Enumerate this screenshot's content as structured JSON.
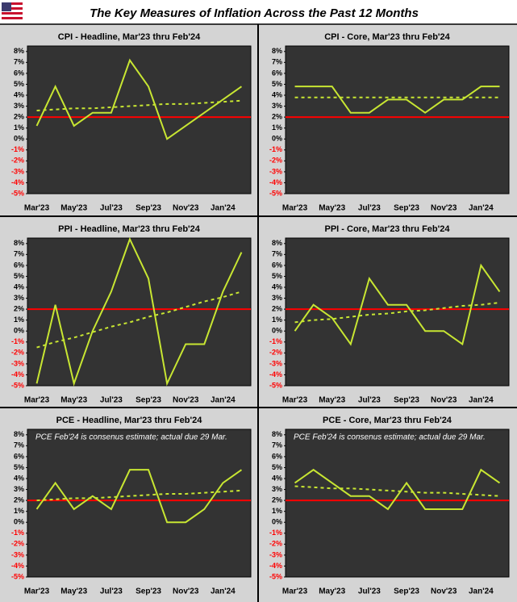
{
  "title": "The Key Measures of Inflation Across the Past 12 Months",
  "chart_data": [
    {
      "type": "line",
      "title": "CPI - Headline, Mar'23 thru Feb'24",
      "categories": [
        "Mar'23",
        null,
        "May'23",
        null,
        "Jul'23",
        null,
        "Sep'23",
        null,
        "Nov'23",
        null,
        "Jan'24",
        null
      ],
      "series": [
        {
          "color": "#c8e632",
          "values": [
            1.2,
            4.8,
            1.2,
            2.4,
            2.4,
            7.2,
            4.8,
            0,
            1.2,
            2.4,
            3.6,
            4.8
          ]
        },
        {
          "color": "#c8e632",
          "dashed": true,
          "values": [
            2.6,
            2.7,
            2.8,
            2.8,
            2.9,
            3.0,
            3.1,
            3.2,
            3.2,
            3.3,
            3.4,
            3.5
          ]
        }
      ],
      "reference_line": {
        "value": 2,
        "color": "#ff0000"
      },
      "ylim": [
        -5,
        8.5
      ],
      "yticks": [
        {
          "value": 8,
          "label": "8%"
        },
        {
          "value": 7,
          "label": "7%"
        },
        {
          "value": 6,
          "label": "6%"
        },
        {
          "value": 5,
          "label": "5%"
        },
        {
          "value": 4,
          "label": "4%"
        },
        {
          "value": 3,
          "label": "3%"
        },
        {
          "value": 2,
          "label": "2%"
        },
        {
          "value": 1,
          "label": "1%"
        },
        {
          "value": 0,
          "label": "0%"
        },
        {
          "value": -1,
          "label": "-1%"
        },
        {
          "value": -2,
          "label": "-2%"
        },
        {
          "value": -3,
          "label": "-3%"
        },
        {
          "value": -4,
          "label": "-4%"
        },
        {
          "value": -5,
          "label": "-5%"
        }
      ]
    },
    {
      "type": "line",
      "title": "CPI - Core, Mar'23 thru Feb'24",
      "categories": [
        "Mar'23",
        null,
        "May'23",
        null,
        "Jul'23",
        null,
        "Sep'23",
        null,
        "Nov'23",
        null,
        "Jan'24",
        null
      ],
      "series": [
        {
          "color": "#c8e632",
          "values": [
            4.8,
            4.8,
            4.8,
            2.4,
            2.4,
            3.6,
            3.6,
            2.4,
            3.6,
            3.6,
            4.8,
            4.8
          ]
        },
        {
          "color": "#c8e632",
          "dashed": true,
          "values": [
            3.8,
            3.8,
            3.8,
            3.8,
            3.8,
            3.8,
            3.8,
            3.8,
            3.8,
            3.8,
            3.8,
            3.8
          ]
        }
      ],
      "reference_line": {
        "value": 2,
        "color": "#ff0000"
      },
      "ylim": [
        -5,
        8.5
      ],
      "yticks": [
        {
          "value": 8,
          "label": "8%"
        },
        {
          "value": 7,
          "label": "7%"
        },
        {
          "value": 6,
          "label": "6%"
        },
        {
          "value": 5,
          "label": "5%"
        },
        {
          "value": 4,
          "label": "4%"
        },
        {
          "value": 3,
          "label": "3%"
        },
        {
          "value": 2,
          "label": "2%"
        },
        {
          "value": 1,
          "label": "1%"
        },
        {
          "value": 0,
          "label": "0%"
        },
        {
          "value": -1,
          "label": "-1%"
        },
        {
          "value": -2,
          "label": "-2%"
        },
        {
          "value": -3,
          "label": "-3%"
        },
        {
          "value": -4,
          "label": "-4%"
        },
        {
          "value": -5,
          "label": "-5%"
        }
      ]
    },
    {
      "type": "line",
      "title": "PPI - Headline, Mar'23 thru Feb'24",
      "categories": [
        "Mar'23",
        null,
        "May'23",
        null,
        "Jul'23",
        null,
        "Sep'23",
        null,
        "Nov'23",
        null,
        "Jan'24",
        null
      ],
      "series": [
        {
          "color": "#c8e632",
          "values": [
            -4.8,
            2.4,
            -4.8,
            0,
            3.6,
            8.4,
            4.8,
            -4.8,
            -1.2,
            -1.2,
            3.6,
            7.2
          ]
        },
        {
          "color": "#c8e632",
          "dashed": true,
          "values": [
            -1.5,
            -1.0,
            -0.6,
            -0.1,
            0.4,
            0.8,
            1.3,
            1.7,
            2.2,
            2.7,
            3.1,
            3.6
          ]
        }
      ],
      "reference_line": {
        "value": 2,
        "color": "#ff0000"
      },
      "ylim": [
        -5,
        8.5
      ],
      "yticks": [
        {
          "value": 8,
          "label": "8%"
        },
        {
          "value": 7,
          "label": "7%"
        },
        {
          "value": 6,
          "label": "6%"
        },
        {
          "value": 5,
          "label": "5%"
        },
        {
          "value": 4,
          "label": "4%"
        },
        {
          "value": 3,
          "label": "3%"
        },
        {
          "value": 2,
          "label": "2%"
        },
        {
          "value": 1,
          "label": "1%"
        },
        {
          "value": 0,
          "label": "0%"
        },
        {
          "value": -1,
          "label": "-1%"
        },
        {
          "value": -2,
          "label": "-2%"
        },
        {
          "value": -3,
          "label": "-3%"
        },
        {
          "value": -4,
          "label": "-4%"
        },
        {
          "value": -5,
          "label": "-5%"
        }
      ]
    },
    {
      "type": "line",
      "title": "PPI - Core, Mar'23 thru Feb'24",
      "categories": [
        "Mar'23",
        null,
        "May'23",
        null,
        "Jul'23",
        null,
        "Sep'23",
        null,
        "Nov'23",
        null,
        "Jan'24",
        null
      ],
      "series": [
        {
          "color": "#c8e632",
          "values": [
            0,
            2.4,
            1.2,
            -1.2,
            4.8,
            2.4,
            2.4,
            0,
            0,
            -1.2,
            6.0,
            3.6
          ]
        },
        {
          "color": "#c8e632",
          "dashed": true,
          "values": [
            0.8,
            1.0,
            1.1,
            1.3,
            1.5,
            1.6,
            1.8,
            1.9,
            2.1,
            2.3,
            2.4,
            2.6
          ]
        }
      ],
      "reference_line": {
        "value": 2,
        "color": "#ff0000"
      },
      "ylim": [
        -5,
        8.5
      ],
      "yticks": [
        {
          "value": 8,
          "label": "8%"
        },
        {
          "value": 7,
          "label": "7%"
        },
        {
          "value": 6,
          "label": "6%"
        },
        {
          "value": 5,
          "label": "5%"
        },
        {
          "value": 4,
          "label": "4%"
        },
        {
          "value": 3,
          "label": "3%"
        },
        {
          "value": 2,
          "label": "2%"
        },
        {
          "value": 1,
          "label": "1%"
        },
        {
          "value": 0,
          "label": "0%"
        },
        {
          "value": -1,
          "label": "-1%"
        },
        {
          "value": -2,
          "label": "-2%"
        },
        {
          "value": -3,
          "label": "-3%"
        },
        {
          "value": -4,
          "label": "-4%"
        },
        {
          "value": -5,
          "label": "-5%"
        }
      ]
    },
    {
      "type": "line",
      "title": "PCE - Headline, Mar'23 thru Feb'24",
      "annotation": "PCE Feb'24 is consenus estimate; actual due 29 Mar.",
      "categories": [
        "Mar'23",
        null,
        "May'23",
        null,
        "Jul'23",
        null,
        "Sep'23",
        null,
        "Nov'23",
        null,
        "Jan'24",
        null
      ],
      "series": [
        {
          "color": "#c8e632",
          "values": [
            1.2,
            3.6,
            1.2,
            2.4,
            1.2,
            4.8,
            4.8,
            0,
            0,
            1.2,
            3.6,
            4.8
          ]
        },
        {
          "color": "#c8e632",
          "dashed": true,
          "values": [
            2.0,
            2.1,
            2.2,
            2.2,
            2.3,
            2.4,
            2.5,
            2.6,
            2.6,
            2.7,
            2.8,
            2.9
          ]
        }
      ],
      "reference_line": {
        "value": 2,
        "color": "#ff0000"
      },
      "ylim": [
        -5,
        8.5
      ],
      "yticks": [
        {
          "value": 8,
          "label": "8%"
        },
        {
          "value": 7,
          "label": "7%"
        },
        {
          "value": 6,
          "label": "6%"
        },
        {
          "value": 5,
          "label": "5%"
        },
        {
          "value": 4,
          "label": "4%"
        },
        {
          "value": 3,
          "label": "3%"
        },
        {
          "value": 2,
          "label": "2%"
        },
        {
          "value": 1,
          "label": "1%"
        },
        {
          "value": 0,
          "label": "0%"
        },
        {
          "value": -1,
          "label": "-1%"
        },
        {
          "value": -2,
          "label": "-2%"
        },
        {
          "value": -3,
          "label": "-3%"
        },
        {
          "value": -4,
          "label": "-4%"
        },
        {
          "value": -5,
          "label": "-5%"
        }
      ]
    },
    {
      "type": "line",
      "title": "PCE - Core, Mar'23 thru Feb'24",
      "annotation": "PCE Feb'24 is consenus estimate; actual due 29 Mar.",
      "categories": [
        "Mar'23",
        null,
        "May'23",
        null,
        "Jul'23",
        null,
        "Sep'23",
        null,
        "Nov'23",
        null,
        "Jan'24",
        null
      ],
      "series": [
        {
          "color": "#c8e632",
          "values": [
            3.6,
            4.8,
            3.6,
            2.4,
            2.4,
            1.2,
            3.6,
            1.2,
            1.2,
            1.2,
            4.8,
            3.6
          ]
        },
        {
          "color": "#c8e632",
          "dashed": true,
          "values": [
            3.3,
            3.2,
            3.1,
            3.1,
            3.0,
            2.9,
            2.8,
            2.7,
            2.7,
            2.6,
            2.5,
            2.4
          ]
        }
      ],
      "reference_line": {
        "value": 2,
        "color": "#ff0000"
      },
      "ylim": [
        -5,
        8.5
      ],
      "yticks": [
        {
          "value": 8,
          "label": "8%"
        },
        {
          "value": 7,
          "label": "7%"
        },
        {
          "value": 6,
          "label": "6%"
        },
        {
          "value": 5,
          "label": "5%"
        },
        {
          "value": 4,
          "label": "4%"
        },
        {
          "value": 3,
          "label": "3%"
        },
        {
          "value": 2,
          "label": "2%"
        },
        {
          "value": 1,
          "label": "1%"
        },
        {
          "value": 0,
          "label": "0%"
        },
        {
          "value": -1,
          "label": "-1%"
        },
        {
          "value": -2,
          "label": "-2%"
        },
        {
          "value": -3,
          "label": "-3%"
        },
        {
          "value": -4,
          "label": "-4%"
        },
        {
          "value": -5,
          "label": "-5%"
        }
      ]
    }
  ]
}
